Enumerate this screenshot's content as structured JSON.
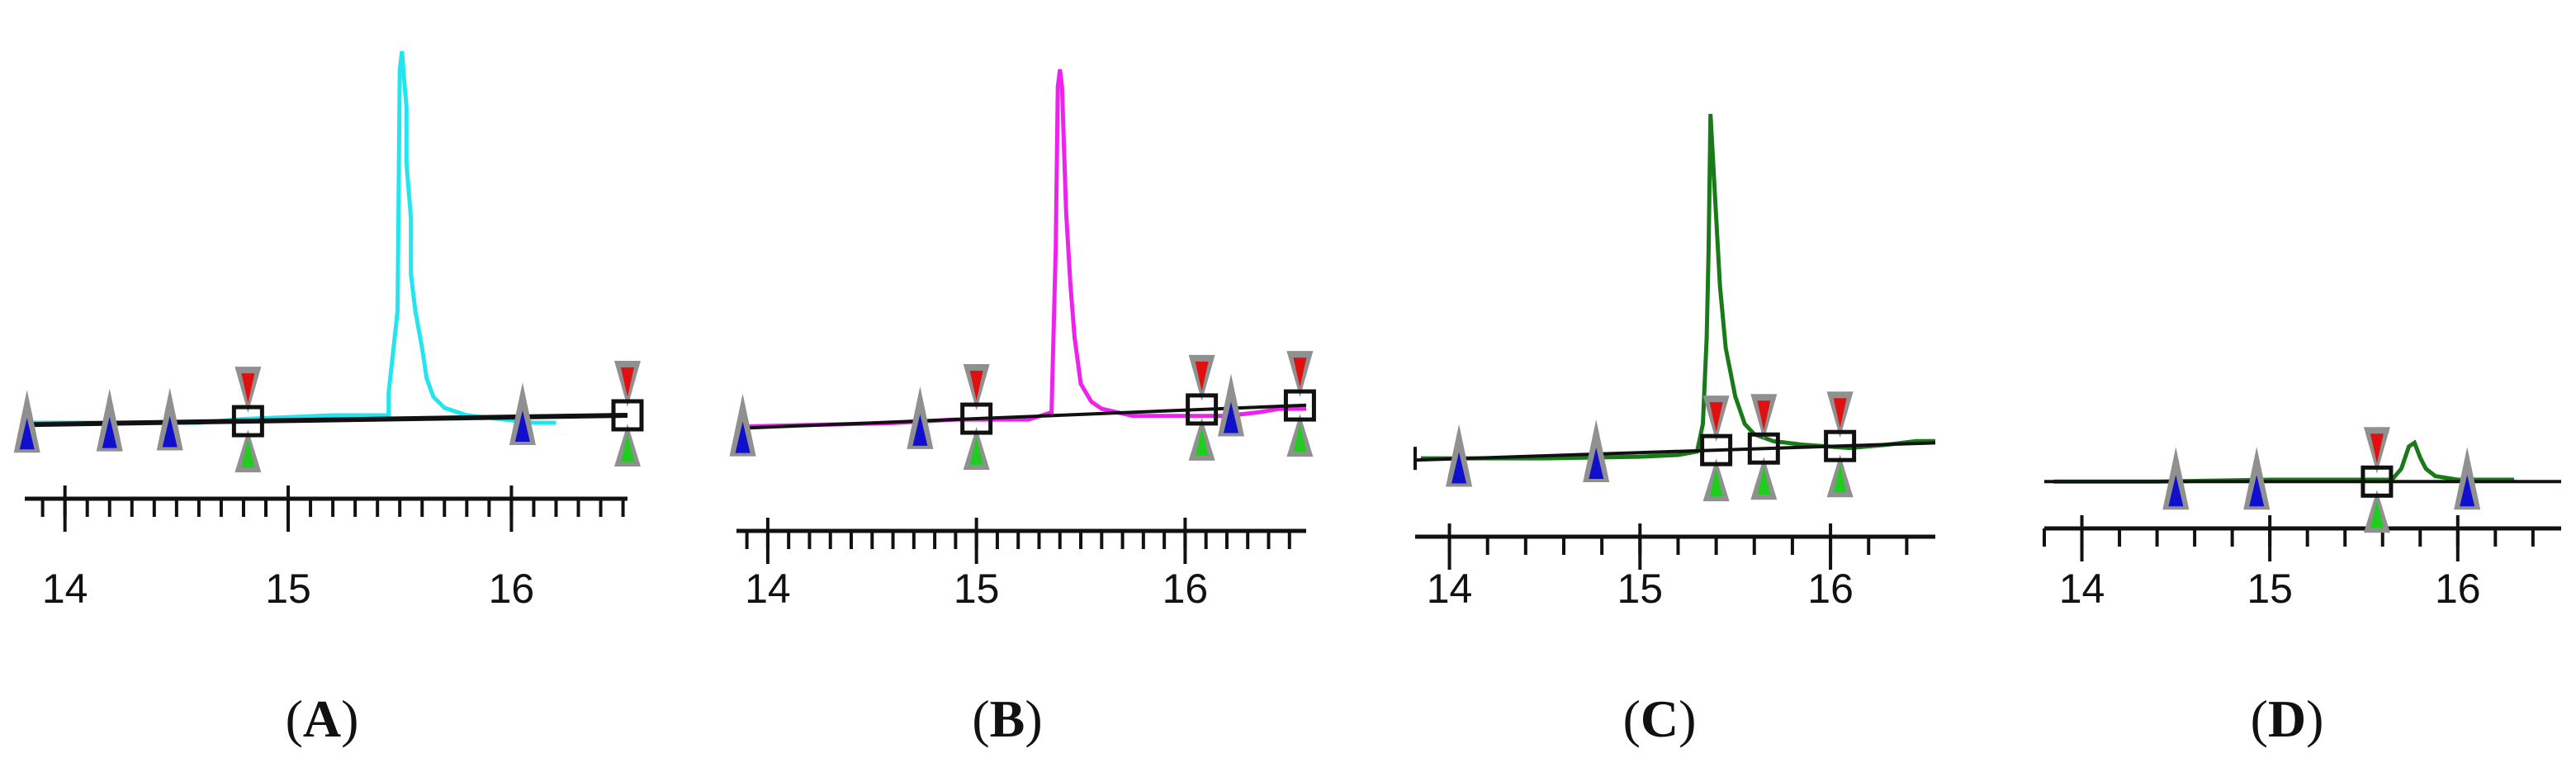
{
  "chart_data": [
    {
      "type": "line",
      "panel_label": "A",
      "trace_color": "#22e5f0",
      "x_range": [
        13.82,
        16.52
      ],
      "y_range": [
        -0.08,
        1.0
      ],
      "x_ticks": [
        14,
        15,
        16
      ],
      "minor_step": 0.1,
      "trace": [
        [
          13.82,
          0.0
        ],
        [
          14.6,
          0.0
        ],
        [
          14.8,
          0.01
        ],
        [
          15.2,
          0.02
        ],
        [
          15.45,
          0.02
        ],
        [
          15.45,
          0.08
        ],
        [
          15.49,
          0.3
        ],
        [
          15.5,
          0.95
        ],
        [
          15.51,
          1.0
        ],
        [
          15.52,
          0.92
        ],
        [
          15.53,
          0.85
        ],
        [
          15.53,
          0.7
        ],
        [
          15.55,
          0.55
        ],
        [
          15.55,
          0.4
        ],
        [
          15.57,
          0.3
        ],
        [
          15.6,
          0.2
        ],
        [
          15.62,
          0.12
        ],
        [
          15.65,
          0.07
        ],
        [
          15.7,
          0.04
        ],
        [
          15.8,
          0.02
        ],
        [
          15.95,
          0.01
        ],
        [
          16.1,
          0.0
        ],
        [
          16.2,
          0.0
        ]
      ],
      "baseline": [
        [
          13.82,
          -0.005
        ],
        [
          16.52,
          0.02
        ]
      ],
      "peak_markers": [
        14.82,
        16.52
      ],
      "sub_markers": [
        13.83,
        14.2,
        14.47,
        16.05
      ]
    },
    {
      "type": "line",
      "panel_label": "B",
      "trace_color": "#ee22ee",
      "x_range": [
        13.85,
        16.58
      ],
      "y_range": [
        -0.1,
        1.0
      ],
      "x_ticks": [
        14,
        15,
        16
      ],
      "minor_step": 0.1,
      "trace": [
        [
          13.85,
          0.0
        ],
        [
          14.6,
          0.01
        ],
        [
          14.9,
          0.02
        ],
        [
          15.05,
          0.02
        ],
        [
          15.25,
          0.02
        ],
        [
          15.36,
          0.04
        ],
        [
          15.38,
          0.5
        ],
        [
          15.39,
          0.95
        ],
        [
          15.4,
          1.0
        ],
        [
          15.41,
          0.95
        ],
        [
          15.43,
          0.6
        ],
        [
          15.45,
          0.4
        ],
        [
          15.47,
          0.25
        ],
        [
          15.5,
          0.12
        ],
        [
          15.55,
          0.07
        ],
        [
          15.6,
          0.05
        ],
        [
          15.75,
          0.03
        ],
        [
          16.0,
          0.03
        ],
        [
          16.2,
          0.03
        ],
        [
          16.35,
          0.04
        ],
        [
          16.45,
          0.05
        ],
        [
          16.58,
          0.05
        ]
      ],
      "baseline": [
        [
          13.85,
          -0.005
        ],
        [
          16.58,
          0.06
        ]
      ],
      "peak_markers": [
        15.0,
        16.08,
        16.55
      ],
      "sub_markers": [
        13.88,
        14.73,
        16.22
      ]
    },
    {
      "type": "line",
      "panel_label": "C",
      "trace_color": "#1a7a1a",
      "x_range": [
        13.82,
        16.55
      ],
      "y_range": [
        -0.05,
        1.0
      ],
      "x_ticks": [
        14,
        15,
        16
      ],
      "minor_step": 0.2,
      "trace": [
        [
          13.85,
          0.0
        ],
        [
          14.5,
          0.0
        ],
        [
          15.0,
          0.005
        ],
        [
          15.2,
          0.01
        ],
        [
          15.3,
          0.02
        ],
        [
          15.33,
          0.1
        ],
        [
          15.35,
          0.35
        ],
        [
          15.36,
          0.6
        ],
        [
          15.37,
          1.0
        ],
        [
          15.38,
          0.9
        ],
        [
          15.4,
          0.7
        ],
        [
          15.42,
          0.5
        ],
        [
          15.45,
          0.32
        ],
        [
          15.5,
          0.18
        ],
        [
          15.55,
          0.1
        ],
        [
          15.6,
          0.07
        ],
        [
          15.7,
          0.05
        ],
        [
          15.85,
          0.04
        ],
        [
          16.1,
          0.03
        ],
        [
          16.3,
          0.04
        ],
        [
          16.45,
          0.05
        ],
        [
          16.55,
          0.05
        ]
      ],
      "baseline": [
        [
          13.82,
          -0.005
        ],
        [
          16.55,
          0.045
        ]
      ],
      "peak_markers": [
        15.4,
        15.65,
        16.05
      ],
      "sub_markers": [
        14.05,
        14.77
      ]
    },
    {
      "type": "line",
      "panel_label": "D",
      "trace_color": "#1a7a1a",
      "x_range": [
        13.8,
        16.55
      ],
      "y_range": [
        -0.01,
        1.0
      ],
      "x_ticks": [
        14,
        15,
        16
      ],
      "minor_step": 0.2,
      "trace": [
        [
          13.85,
          0.005
        ],
        [
          14.4,
          0.005
        ],
        [
          15.0,
          0.01
        ],
        [
          15.5,
          0.01
        ],
        [
          15.65,
          0.01
        ],
        [
          15.7,
          0.04
        ],
        [
          15.74,
          0.1
        ],
        [
          15.77,
          0.11
        ],
        [
          15.8,
          0.07
        ],
        [
          15.83,
          0.04
        ],
        [
          15.88,
          0.02
        ],
        [
          16.0,
          0.01
        ],
        [
          16.3,
          0.01
        ]
      ],
      "baseline": [
        [
          13.8,
          0.005
        ],
        [
          16.55,
          0.005
        ]
      ],
      "peak_markers": [
        15.57
      ],
      "sub_markers": [
        14.5,
        14.93,
        16.05
      ]
    }
  ]
}
